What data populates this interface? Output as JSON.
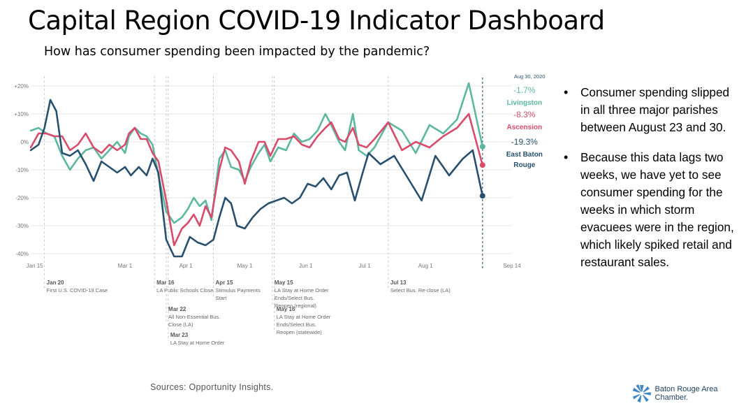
{
  "header": {
    "title": "Capital Region COVID-19 Indicator Dashboard",
    "subtitle": "How has consumer spending been impacted by the pandemic?"
  },
  "chart_data": {
    "type": "line",
    "ylim": [
      -42,
      22
    ],
    "yticks": [
      20,
      10,
      0,
      -10,
      -20,
      -30,
      -40
    ],
    "ytick_labels": [
      "+20%",
      "+10%",
      "0%",
      "-10%",
      "-20%",
      "-30%",
      "-40%"
    ],
    "x_range": [
      "2020-01-13",
      "2020-09-14"
    ],
    "xticks": [
      {
        "date": "2020-01-15",
        "label": "Jan 15"
      },
      {
        "date": "2020-03-01",
        "label": "Mar 1"
      },
      {
        "date": "2020-04-01",
        "label": "Apr 1"
      },
      {
        "date": "2020-05-01",
        "label": "May 1"
      },
      {
        "date": "2020-06-01",
        "label": "Jun 1"
      },
      {
        "date": "2020-07-01",
        "label": "Jul 1"
      },
      {
        "date": "2020-08-01",
        "label": "Aug 1"
      },
      {
        "date": "2020-09-14",
        "label": "Sep 14"
      }
    ],
    "end_date_label": "Aug 30, 2020",
    "end_date": "2020-08-30",
    "events": [
      {
        "date": "2020-01-20",
        "title": "Jan 20",
        "desc": [
          "First U.S. COVID-19 Case"
        ],
        "level": 0
      },
      {
        "date": "2020-03-16",
        "title": "Mar 16",
        "desc": [
          "LA Public Schools Close"
        ],
        "level": 0
      },
      {
        "date": "2020-03-22",
        "title": "Mar 22",
        "desc": [
          "All Non-Essential Bus.",
          "Close (LA)"
        ],
        "level": 1
      },
      {
        "date": "2020-03-23",
        "title": "Mar 23",
        "desc": [
          "LA Stay at Home Order"
        ],
        "level": 2
      },
      {
        "date": "2020-04-15",
        "title": "Apr 15",
        "desc": [
          "Stimulus Payments",
          "Start"
        ],
        "level": 0
      },
      {
        "date": "2020-05-15",
        "title": "May 15",
        "desc": [
          "LA Stay at Home Order",
          "Ends/Select Bus.",
          "Reopen (regional)"
        ],
        "level": 0
      },
      {
        "date": "2020-05-16",
        "title": "May 16",
        "desc": [
          "LA Stay at Home Order",
          "Ends/Select Bus.",
          "Reopen (statewide)"
        ],
        "level": 1
      },
      {
        "date": "2020-07-13",
        "title": "Jul 13",
        "desc": [
          "Select Bus. Re-close (LA)"
        ],
        "level": 0
      }
    ],
    "series": [
      {
        "name": "Livingston",
        "color": "#5bb89e",
        "end_value_label": "-1.7%",
        "points": [
          [
            "2020-01-13",
            4
          ],
          [
            "2020-01-17",
            5
          ],
          [
            "2020-01-21",
            3
          ],
          [
            "2020-01-25",
            2
          ],
          [
            "2020-01-29",
            -5
          ],
          [
            "2020-02-02",
            -10
          ],
          [
            "2020-02-06",
            -6
          ],
          [
            "2020-02-10",
            -3
          ],
          [
            "2020-02-14",
            -2
          ],
          [
            "2020-02-18",
            -6
          ],
          [
            "2020-02-22",
            -3
          ],
          [
            "2020-02-26",
            0
          ],
          [
            "2020-03-01",
            -4
          ],
          [
            "2020-03-03",
            2
          ],
          [
            "2020-03-06",
            5
          ],
          [
            "2020-03-09",
            3
          ],
          [
            "2020-03-12",
            2
          ],
          [
            "2020-03-15",
            -1
          ],
          [
            "2020-03-18",
            -12
          ],
          [
            "2020-03-22",
            -25
          ],
          [
            "2020-03-26",
            -29
          ],
          [
            "2020-03-30",
            -27
          ],
          [
            "2020-04-02",
            -24
          ],
          [
            "2020-04-05",
            -20
          ],
          [
            "2020-04-08",
            -23
          ],
          [
            "2020-04-11",
            -21
          ],
          [
            "2020-04-14",
            -28
          ],
          [
            "2020-04-18",
            -6
          ],
          [
            "2020-04-21",
            -3
          ],
          [
            "2020-04-24",
            -9
          ],
          [
            "2020-04-28",
            -10
          ],
          [
            "2020-05-01",
            -14
          ],
          [
            "2020-05-04",
            -9
          ],
          [
            "2020-05-08",
            -4
          ],
          [
            "2020-05-11",
            -1
          ],
          [
            "2020-05-14",
            -7
          ],
          [
            "2020-05-18",
            -2
          ],
          [
            "2020-05-22",
            -3
          ],
          [
            "2020-05-26",
            3
          ],
          [
            "2020-05-30",
            0
          ],
          [
            "2020-06-03",
            1
          ],
          [
            "2020-06-07",
            4
          ],
          [
            "2020-06-11",
            10
          ],
          [
            "2020-06-14",
            6
          ],
          [
            "2020-06-18",
            0
          ],
          [
            "2020-06-21",
            -3
          ],
          [
            "2020-06-25",
            10
          ],
          [
            "2020-06-28",
            -3
          ],
          [
            "2020-07-02",
            -5
          ],
          [
            "2020-07-06",
            -2
          ],
          [
            "2020-07-13",
            7
          ],
          [
            "2020-07-20",
            4
          ],
          [
            "2020-07-27",
            -4
          ],
          [
            "2020-08-03",
            6
          ],
          [
            "2020-08-10",
            3
          ],
          [
            "2020-08-17",
            8
          ],
          [
            "2020-08-23",
            21
          ],
          [
            "2020-08-30",
            -1.7
          ]
        ]
      },
      {
        "name": "Ascension",
        "color": "#d84b6a",
        "end_value_label": "-8.3%",
        "points": [
          [
            "2020-01-13",
            -2
          ],
          [
            "2020-01-17",
            3
          ],
          [
            "2020-01-21",
            3
          ],
          [
            "2020-01-25",
            2
          ],
          [
            "2020-01-29",
            2
          ],
          [
            "2020-02-02",
            -3
          ],
          [
            "2020-02-06",
            -1
          ],
          [
            "2020-02-10",
            3
          ],
          [
            "2020-02-14",
            -2
          ],
          [
            "2020-02-18",
            -4
          ],
          [
            "2020-02-22",
            -1
          ],
          [
            "2020-02-26",
            -3
          ],
          [
            "2020-03-01",
            -1
          ],
          [
            "2020-03-03",
            3
          ],
          [
            "2020-03-06",
            5
          ],
          [
            "2020-03-09",
            1
          ],
          [
            "2020-03-12",
            1
          ],
          [
            "2020-03-15",
            -4
          ],
          [
            "2020-03-18",
            -7
          ],
          [
            "2020-03-22",
            -21
          ],
          [
            "2020-03-26",
            -37
          ],
          [
            "2020-03-30",
            -31
          ],
          [
            "2020-04-02",
            -29
          ],
          [
            "2020-04-05",
            -26
          ],
          [
            "2020-04-08",
            -30
          ],
          [
            "2020-04-11",
            -23
          ],
          [
            "2020-04-14",
            -27
          ],
          [
            "2020-04-18",
            -10
          ],
          [
            "2020-04-21",
            -2
          ],
          [
            "2020-04-24",
            -3
          ],
          [
            "2020-04-28",
            -7
          ],
          [
            "2020-05-01",
            -15
          ],
          [
            "2020-05-04",
            -7
          ],
          [
            "2020-05-08",
            0
          ],
          [
            "2020-05-11",
            0
          ],
          [
            "2020-05-14",
            -5
          ],
          [
            "2020-05-18",
            1
          ],
          [
            "2020-05-22",
            1
          ],
          [
            "2020-05-26",
            2
          ],
          [
            "2020-05-30",
            -1
          ],
          [
            "2020-06-03",
            -2
          ],
          [
            "2020-06-07",
            2
          ],
          [
            "2020-06-11",
            5
          ],
          [
            "2020-06-14",
            7
          ],
          [
            "2020-06-18",
            1
          ],
          [
            "2020-06-21",
            0
          ],
          [
            "2020-06-25",
            5
          ],
          [
            "2020-06-28",
            -1
          ],
          [
            "2020-07-02",
            -2
          ],
          [
            "2020-07-06",
            1
          ],
          [
            "2020-07-13",
            7
          ],
          [
            "2020-07-20",
            -3
          ],
          [
            "2020-07-27",
            0
          ],
          [
            "2020-08-03",
            -2
          ],
          [
            "2020-08-10",
            2
          ],
          [
            "2020-08-17",
            5
          ],
          [
            "2020-08-23",
            10
          ],
          [
            "2020-08-30",
            -8.3
          ]
        ]
      },
      {
        "name": "East Baton Rouge",
        "name_lines": [
          "East Baton",
          "Rouge"
        ],
        "color": "#28506e",
        "end_value_label": "-19.3%",
        "points": [
          [
            "2020-01-13",
            -3
          ],
          [
            "2020-01-17",
            -1
          ],
          [
            "2020-01-20",
            5
          ],
          [
            "2020-01-23",
            15
          ],
          [
            "2020-01-26",
            11
          ],
          [
            "2020-01-29",
            -4
          ],
          [
            "2020-02-02",
            -5
          ],
          [
            "2020-02-06",
            -3
          ],
          [
            "2020-02-10",
            -8
          ],
          [
            "2020-02-14",
            -14
          ],
          [
            "2020-02-18",
            -7
          ],
          [
            "2020-02-22",
            -9
          ],
          [
            "2020-02-26",
            -11
          ],
          [
            "2020-03-01",
            -9
          ],
          [
            "2020-03-04",
            -12
          ],
          [
            "2020-03-08",
            -9
          ],
          [
            "2020-03-12",
            -12
          ],
          [
            "2020-03-15",
            -6
          ],
          [
            "2020-03-18",
            -11
          ],
          [
            "2020-03-22",
            -35
          ],
          [
            "2020-03-26",
            -41
          ],
          [
            "2020-03-30",
            -41
          ],
          [
            "2020-04-03",
            -34
          ],
          [
            "2020-04-07",
            -36
          ],
          [
            "2020-04-11",
            -37
          ],
          [
            "2020-04-15",
            -35
          ],
          [
            "2020-04-18",
            -27
          ],
          [
            "2020-04-21",
            -20
          ],
          [
            "2020-04-24",
            -22
          ],
          [
            "2020-04-27",
            -30
          ],
          [
            "2020-05-01",
            -31
          ],
          [
            "2020-05-05",
            -27
          ],
          [
            "2020-05-09",
            -24
          ],
          [
            "2020-05-13",
            -22
          ],
          [
            "2020-05-17",
            -21
          ],
          [
            "2020-05-21",
            -20
          ],
          [
            "2020-05-25",
            -22
          ],
          [
            "2020-05-29",
            -20
          ],
          [
            "2020-06-02",
            -15
          ],
          [
            "2020-06-06",
            -16
          ],
          [
            "2020-06-10",
            -13
          ],
          [
            "2020-06-14",
            -17
          ],
          [
            "2020-06-18",
            -12
          ],
          [
            "2020-06-22",
            -11
          ],
          [
            "2020-06-26",
            -21
          ],
          [
            "2020-06-30",
            -11
          ],
          [
            "2020-07-03",
            -4
          ],
          [
            "2020-07-09",
            -8
          ],
          [
            "2020-07-16",
            -5
          ],
          [
            "2020-07-23",
            -13
          ],
          [
            "2020-07-30",
            -21
          ],
          [
            "2020-08-06",
            -5
          ],
          [
            "2020-08-13",
            -12
          ],
          [
            "2020-08-20",
            -6
          ],
          [
            "2020-08-25",
            -3
          ],
          [
            "2020-08-30",
            -19.3
          ]
        ]
      }
    ]
  },
  "bullets": [
    "Consumer spending slipped in all three major parishes between August 23 and 30.",
    "Because this data lags two weeks, we have yet to see consumer spending for the weeks in which storm evacuees were in the region, which likely spiked retail and restaurant sales."
  ],
  "footer": {
    "sources": "Sources: Opportunity Insights.",
    "logo_text": "Baton Rouge Area Chamber."
  }
}
